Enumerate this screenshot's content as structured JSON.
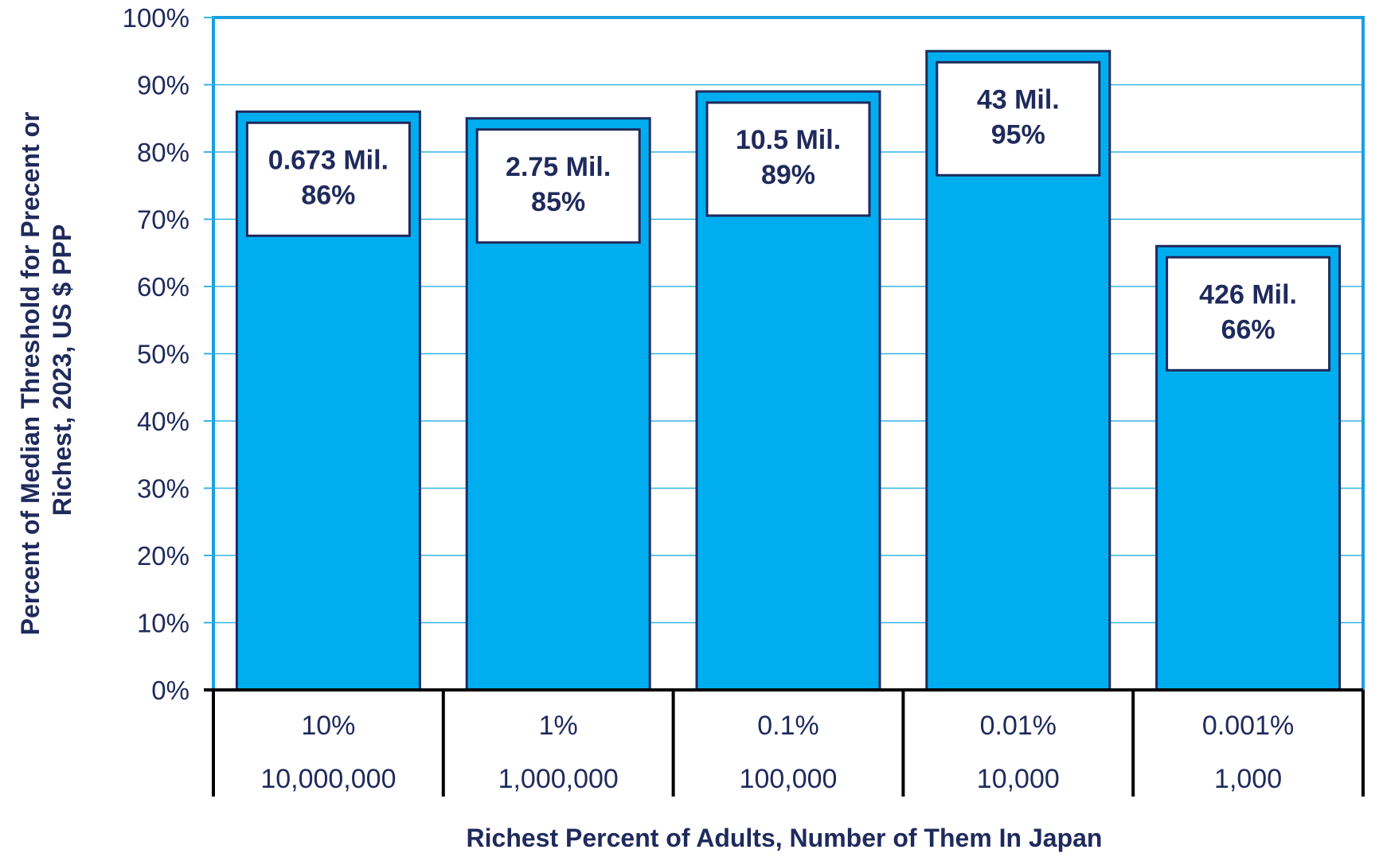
{
  "chart_data": {
    "type": "bar",
    "categories": [
      "10%",
      "1%",
      "0.1%",
      "0.01%",
      "0.001%"
    ],
    "counts": [
      "10,000,000",
      "1,000,000",
      "100,000",
      "10,000",
      "1,000"
    ],
    "values": [
      86,
      85,
      89,
      95,
      66
    ],
    "box_labels": [
      [
        "0.673 Mil.",
        "86%"
      ],
      [
        "2.75 Mil.",
        "85%"
      ],
      [
        "10.5 Mil.",
        "89%"
      ],
      [
        "43 Mil.",
        "95%"
      ],
      [
        "426 Mil.",
        "66%"
      ]
    ],
    "ylim": [
      0,
      100
    ],
    "yticks": [
      "0%",
      "10%",
      "20%",
      "30%",
      "40%",
      "50%",
      "60%",
      "70%",
      "80%",
      "90%",
      "100%"
    ],
    "ylabel_lines": [
      "Percent of Median Threshold  for Precent or",
      "Richest, 2023, US $ PPP"
    ],
    "xlabel": "Richest Percent of Adults, Number of Them In Japan",
    "grid": true,
    "colors": {
      "bar": "#00aeef",
      "bar_edge": "#1f2a5c",
      "grid": "#33b5e5",
      "frame": "#1a9fe0",
      "text": "#1f2a5c",
      "axis": "#000000"
    }
  }
}
